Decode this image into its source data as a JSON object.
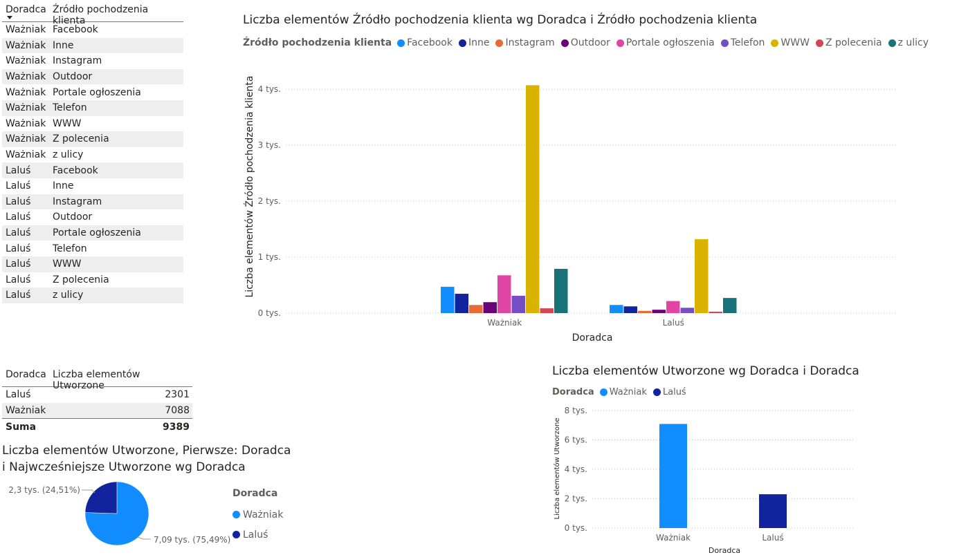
{
  "table1": {
    "headers": [
      "Doradca",
      "Źródło pochodzenia klienta"
    ],
    "rows": [
      [
        "Ważniak",
        "Facebook"
      ],
      [
        "Ważniak",
        "Inne"
      ],
      [
        "Ważniak",
        "Instagram"
      ],
      [
        "Ważniak",
        "Outdoor"
      ],
      [
        "Ważniak",
        "Portale ogłoszenia"
      ],
      [
        "Ważniak",
        "Telefon"
      ],
      [
        "Ważniak",
        "WWW"
      ],
      [
        "Ważniak",
        "Z polecenia"
      ],
      [
        "Ważniak",
        "z ulicy"
      ],
      [
        "Laluś",
        "Facebook"
      ],
      [
        "Laluś",
        "Inne"
      ],
      [
        "Laluś",
        "Instagram"
      ],
      [
        "Laluś",
        "Outdoor"
      ],
      [
        "Laluś",
        "Portale ogłoszenia"
      ],
      [
        "Laluś",
        "Telefon"
      ],
      [
        "Laluś",
        "WWW"
      ],
      [
        "Laluś",
        "Z polecenia"
      ],
      [
        "Laluś",
        "z ulicy"
      ]
    ]
  },
  "table2": {
    "headers": [
      "Doradca",
      "Liczba elementów Utworzone"
    ],
    "rows": [
      [
        "Laluś",
        "2301"
      ],
      [
        "Ważniak",
        "7088"
      ]
    ],
    "total_label": "Suma",
    "total_value": "9389"
  },
  "chart1": {
    "title": "Liczba elementów Źródło pochodzenia klienta wg Doradca i Źródło pochodzenia klienta",
    "legend_title": "Źródło pochodzenia klienta"
  },
  "chart2": {
    "title": "Liczba elementów Utworzone wg Doradca i Doradca",
    "legend_title": "Doradca"
  },
  "chart3": {
    "title_line1": "Liczba elementów Utworzone, Pierwsze: Doradca",
    "title_line2": "i Najwcześniejsze Utworzone wg Doradca",
    "legend_title": "Doradca",
    "legend_items": [
      "Ważniak",
      "Laluś"
    ],
    "label_lalus": "2,3 tys. (24,51%)",
    "label_wazniak": "7,09 tys. (75,49%)"
  },
  "chart_data": [
    {
      "type": "bar",
      "title": "Liczba elementów Źródło pochodzenia klienta wg Doradca i Źródło pochodzenia klienta",
      "xlabel": "Doradca",
      "ylabel": "Liczba elementów Źródło pochodzenia klienta",
      "ylim": [
        0,
        4000
      ],
      "yticks": [
        0,
        1000,
        2000,
        3000,
        4000
      ],
      "ytick_labels": [
        "0 tys.",
        "1 tys.",
        "2 tys.",
        "3 tys.",
        "4 tys."
      ],
      "categories": [
        "Ważniak",
        "Laluś"
      ],
      "grid": true,
      "legend_position": "top-left",
      "series": [
        {
          "name": "Facebook",
          "color": "#118dff",
          "values": [
            470,
            145
          ]
        },
        {
          "name": "Inne",
          "color": "#12239e",
          "values": [
            345,
            120
          ]
        },
        {
          "name": "Instagram",
          "color": "#e66c37",
          "values": [
            145,
            40
          ]
        },
        {
          "name": "Outdoor",
          "color": "#6b007b",
          "values": [
            195,
            60
          ]
        },
        {
          "name": "Portale ogłoszenia",
          "color": "#e044a7",
          "values": [
            675,
            215
          ]
        },
        {
          "name": "Telefon",
          "color": "#744ec2",
          "values": [
            310,
            95
          ]
        },
        {
          "name": "WWW",
          "color": "#d9b300",
          "values": [
            4070,
            1320
          ]
        },
        {
          "name": "Z polecenia",
          "color": "#d64550",
          "values": [
            85,
            25
          ]
        },
        {
          "name": "z ulicy",
          "color": "#197278",
          "values": [
            790,
            270
          ]
        }
      ]
    },
    {
      "type": "bar",
      "title": "Liczba elementów Utworzone wg Doradca i Doradca",
      "xlabel": "Doradca",
      "ylabel": "Liczba elementów Utworzone",
      "ylim": [
        0,
        8000
      ],
      "yticks": [
        0,
        2000,
        4000,
        6000,
        8000
      ],
      "ytick_labels": [
        "0 tys.",
        "2 tys.",
        "4 tys.",
        "6 tys.",
        "8 tys."
      ],
      "categories": [
        "Ważniak",
        "Laluś"
      ],
      "grid": true,
      "legend_position": "top-left",
      "series": [
        {
          "name": "Ważniak",
          "color": "#118dff",
          "values": [
            7088,
            null
          ]
        },
        {
          "name": "Laluś",
          "color": "#12239e",
          "values": [
            null,
            2301
          ]
        }
      ]
    },
    {
      "type": "pie",
      "title": "Liczba elementów Utworzone, Pierwsze: Doradca i Najwcześniejsze Utworzone wg Doradca",
      "categories": [
        "Ważniak",
        "Laluś"
      ],
      "values": [
        7088,
        2301
      ],
      "colors": [
        "#118dff",
        "#12239e"
      ],
      "data_labels": [
        "7,09 tys. (75,49%)",
        "2,3 tys. (24,51%)"
      ],
      "legend_position": "right"
    }
  ]
}
